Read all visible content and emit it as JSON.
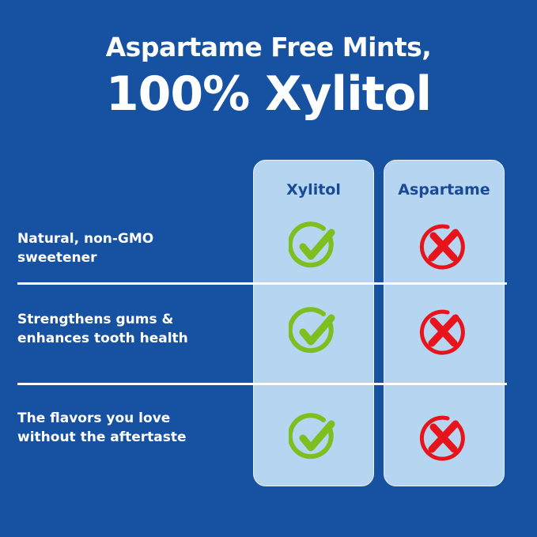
{
  "title_line1": "Aspartame Free Mints,",
  "title_line2": "100% Xylitol",
  "columns": [
    "Xylitol",
    "Aspartame"
  ],
  "rows": [
    {
      "label_line1": "Natural, non-GMO",
      "label_line2": "sweetener",
      "xylitol": "check-icon",
      "aspartame": "x-icon"
    },
    {
      "label_line1": "Strengthens gums &",
      "label_line2": "enhances tooth health",
      "xylitol": "check-icon",
      "aspartame": "x-icon"
    },
    {
      "label_line1": "The flavors you love",
      "label_line2": "without the aftertaste",
      "xylitol": "check-icon",
      "aspartame": "x-icon"
    }
  ],
  "colors": {
    "background": "#1752a2",
    "column": "#b5d5f0",
    "check": "#7cbf1e",
    "cross": "#e8141b",
    "header_text": "#1a4a95"
  }
}
